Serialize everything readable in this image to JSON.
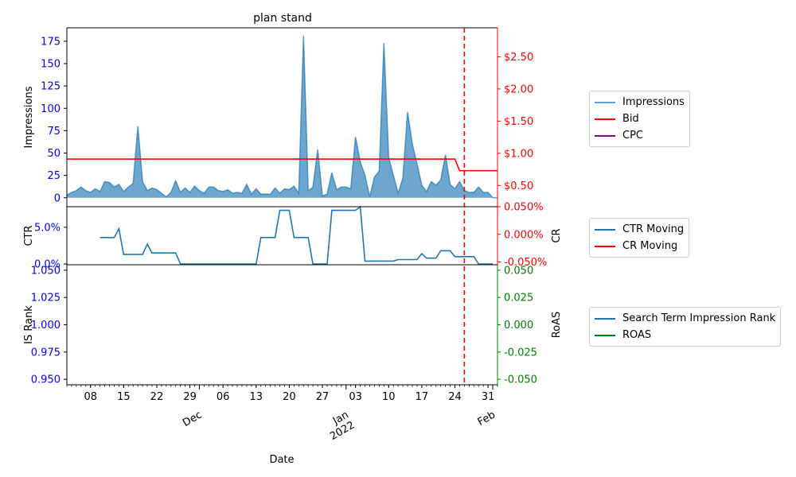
{
  "chart_data": {
    "type": "line",
    "title": "plan stand",
    "xlabel": "Date",
    "x_ticks_minor": [
      "08",
      "15",
      "22",
      "29",
      "06",
      "13",
      "20",
      "27",
      "03",
      "10",
      "17",
      "24",
      "31"
    ],
    "x_ticks_major": [
      {
        "date": "2021-12-01",
        "label": "Dec"
      },
      {
        "date": "2022-01-01",
        "label": "Jan\n2022"
      },
      {
        "date": "2022-02-01",
        "label": "Feb"
      }
    ],
    "x_range": [
      "2021-11-03",
      "2022-02-02"
    ],
    "bid_change_date": "2022-01-26",
    "panels": [
      {
        "ylabel_left": "Impressions",
        "ylabel_right": "",
        "left_ticks": [
          "0",
          "25",
          "50",
          "75",
          "100",
          "125",
          "150",
          "175"
        ],
        "right_ticks": [
          "$0.50",
          "$1.00",
          "$1.50",
          "$2.00",
          "$2.50"
        ],
        "left_range": [
          -10,
          190
        ],
        "right_range": [
          0.17,
          2.95
        ],
        "series": [
          {
            "name": "Impressions",
            "axis": "left",
            "kind": "area",
            "color": "#1f77b4",
            "x": [
              "2021-11-03",
              "2021-11-04",
              "2021-11-05",
              "2021-11-06",
              "2021-11-07",
              "2021-11-08",
              "2021-11-09",
              "2021-11-10",
              "2021-11-11",
              "2021-11-12",
              "2021-11-13",
              "2021-11-14",
              "2021-11-15",
              "2021-11-16",
              "2021-11-17",
              "2021-11-18",
              "2021-11-19",
              "2021-11-20",
              "2021-11-21",
              "2021-11-22",
              "2021-11-23",
              "2021-11-24",
              "2021-11-25",
              "2021-11-26",
              "2021-11-27",
              "2021-11-28",
              "2021-11-29",
              "2021-11-30",
              "2021-12-01",
              "2021-12-02",
              "2021-12-03",
              "2021-12-04",
              "2021-12-05",
              "2021-12-06",
              "2021-12-07",
              "2021-12-08",
              "2021-12-09",
              "2021-12-10",
              "2021-12-11",
              "2021-12-12",
              "2021-12-13",
              "2021-12-14",
              "2021-12-15",
              "2021-12-16",
              "2021-12-17",
              "2021-12-18",
              "2021-12-19",
              "2021-12-20",
              "2021-12-21",
              "2021-12-22",
              "2021-12-23",
              "2021-12-24",
              "2021-12-25",
              "2021-12-26",
              "2021-12-27",
              "2021-12-28",
              "2021-12-29",
              "2021-12-30",
              "2021-12-31",
              "2022-01-01",
              "2022-01-02",
              "2022-01-03",
              "2022-01-04",
              "2022-01-05",
              "2022-01-06",
              "2022-01-07",
              "2022-01-08",
              "2022-01-09",
              "2022-01-10",
              "2022-01-11",
              "2022-01-12",
              "2022-01-13",
              "2022-01-14",
              "2022-01-15",
              "2022-01-16",
              "2022-01-17",
              "2022-01-18",
              "2022-01-19",
              "2022-01-20",
              "2022-01-21",
              "2022-01-22",
              "2022-01-23",
              "2022-01-24",
              "2022-01-25",
              "2022-01-26",
              "2022-01-27",
              "2022-01-28",
              "2022-01-29",
              "2022-01-30",
              "2022-01-31",
              "2022-02-01",
              "2022-02-02"
            ],
            "values": [
              3,
              6,
              8,
              12,
              8,
              6,
              10,
              7,
              18,
              17,
              12,
              15,
              7,
              12,
              16,
              80,
              18,
              8,
              11,
              9,
              5,
              1,
              6,
              19,
              6,
              11,
              6,
              13,
              8,
              5,
              12,
              12,
              8,
              7,
              9,
              5,
              6,
              5,
              15,
              4,
              10,
              4,
              4,
              4,
              11,
              5,
              10,
              9,
              13,
              5,
              181,
              8,
              12,
              54,
              2,
              4,
              28,
              9,
              12,
              12,
              10,
              68,
              40,
              25,
              1,
              23,
              30,
              173,
              45,
              25,
              5,
              22,
              96,
              60,
              38,
              14,
              7,
              18,
              14,
              20,
              48,
              15,
              10,
              18,
              8,
              6,
              6,
              12,
              6,
              6,
              0,
              0
            ]
          },
          {
            "name": "Bid",
            "axis": "right",
            "kind": "line",
            "color": "#ff0000",
            "x": [
              "2021-11-03",
              "2022-01-24",
              "2022-01-25",
              "2022-02-02"
            ],
            "values": [
              0.91,
              0.91,
              0.73,
              0.73
            ]
          },
          {
            "name": "CPC",
            "axis": "right",
            "kind": "line",
            "color": "#800080",
            "x": [],
            "values": []
          }
        ]
      },
      {
        "ylabel_left": "CTR",
        "ylabel_right": "CR",
        "left_ticks": [
          "0.0%",
          "5.0%"
        ],
        "right_ticks": [
          "-0.050%",
          "0.000%",
          "0.050%"
        ],
        "left_range": [
          -0.1,
          7.8
        ],
        "right_range": [
          -0.055,
          0.05
        ],
        "series": [
          {
            "name": "CTR Moving",
            "axis": "left",
            "kind": "line",
            "color": "#1f77b4",
            "x": [
              "2021-11-10",
              "2021-11-13",
              "2021-11-14",
              "2021-11-15",
              "2021-11-19",
              "2021-11-20",
              "2021-11-21",
              "2021-11-26",
              "2021-11-27",
              "2021-12-13",
              "2021-12-14",
              "2021-12-17",
              "2021-12-18",
              "2021-12-20",
              "2021-12-21",
              "2021-12-24",
              "2021-12-25",
              "2021-12-28",
              "2021-12-29",
              "2022-01-03",
              "2022-01-04",
              "2022-01-05",
              "2022-01-11",
              "2022-01-12",
              "2022-01-16",
              "2022-01-17",
              "2022-01-18",
              "2022-01-20",
              "2022-01-21",
              "2022-01-23",
              "2022-01-24",
              "2022-01-28",
              "2022-01-29",
              "2022-02-01"
            ],
            "values": [
              3.6,
              3.6,
              4.8,
              1.3,
              1.3,
              2.7,
              1.5,
              1.5,
              0.0,
              0.0,
              3.6,
              3.6,
              7.3,
              7.3,
              3.6,
              3.6,
              0.0,
              0.0,
              7.3,
              7.3,
              7.8,
              0.4,
              0.4,
              0.6,
              0.6,
              1.4,
              0.8,
              0.8,
              1.8,
              1.8,
              1.0,
              1.0,
              0.0,
              0.0
            ]
          },
          {
            "name": "CR Moving",
            "axis": "right",
            "kind": "line",
            "color": "#ff0000",
            "x": [],
            "values": []
          }
        ]
      },
      {
        "ylabel_left": "IS Rank",
        "ylabel_right": "RoAS",
        "left_ticks": [
          "0.950",
          "0.975",
          "1.000",
          "1.025",
          "1.050"
        ],
        "right_ticks": [
          "-0.050",
          "-0.025",
          "0.000",
          "0.025",
          "0.050"
        ],
        "left_range": [
          0.945,
          1.055
        ],
        "right_range": [
          -0.055,
          0.055
        ],
        "series": [
          {
            "name": "Search Term Impression Rank",
            "axis": "left",
            "kind": "line",
            "color": "#1f77b4",
            "x": [],
            "values": []
          },
          {
            "name": "ROAS",
            "axis": "right",
            "kind": "line",
            "color": "#008000",
            "x": [],
            "values": []
          }
        ]
      }
    ],
    "colors": {
      "left_ticks": "#0000ff",
      "right_ticks_1": "#ff0000",
      "right_ticks_2": "#ff0000",
      "right_ticks_3": "#008000",
      "vline": "#ff0000"
    }
  }
}
